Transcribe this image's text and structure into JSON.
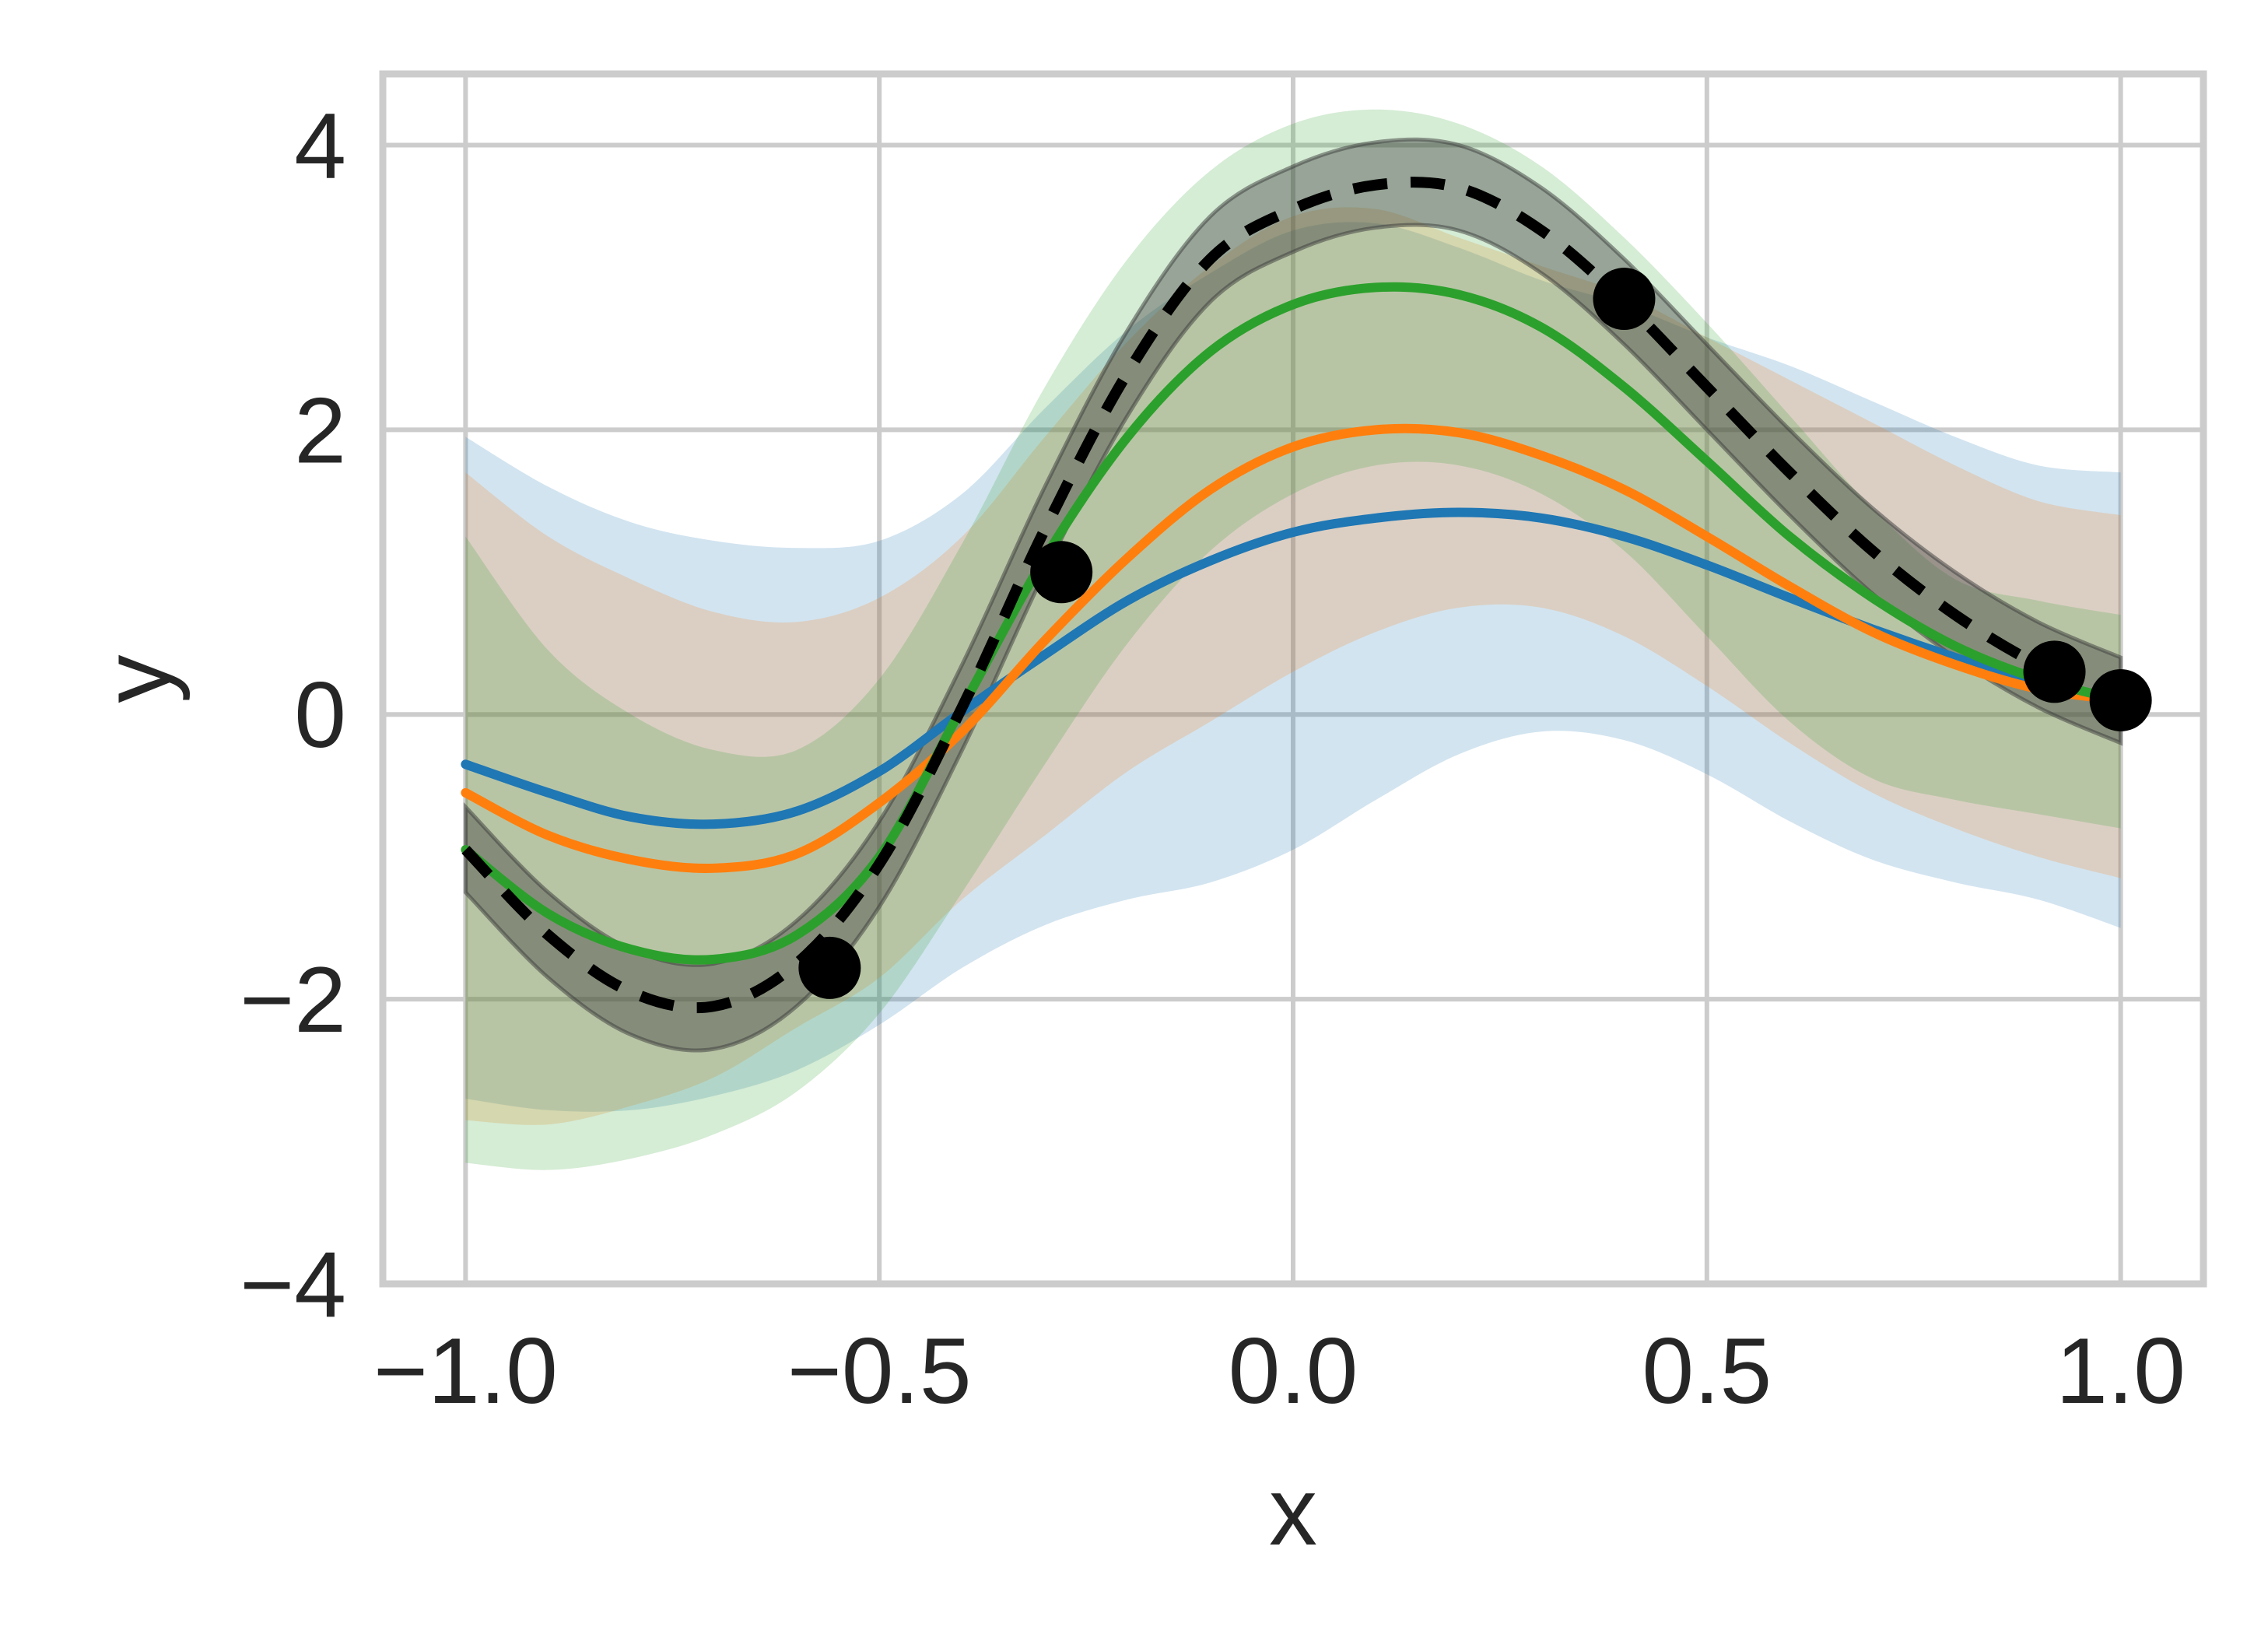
{
  "chart_data": {
    "type": "line",
    "title": "",
    "xlabel": "x",
    "ylabel": "y",
    "xlim": [
      -1.1,
      1.1
    ],
    "ylim": [
      -4,
      4.5
    ],
    "xticks": [
      -1.0,
      -0.5,
      0.0,
      0.5,
      1.0
    ],
    "xtick_labels": [
      "−1.0",
      "−0.5",
      "0.0",
      "0.5",
      "1.0"
    ],
    "yticks": [
      -4,
      -2,
      0,
      2,
      4
    ],
    "ytick_labels": [
      "−4",
      "−2",
      "0",
      "2",
      "4"
    ],
    "grid": true,
    "legend": "none",
    "x": [
      -1.0,
      -0.9,
      -0.8,
      -0.7,
      -0.6,
      -0.5,
      -0.4,
      -0.3,
      -0.2,
      -0.1,
      0.0,
      0.1,
      0.2,
      0.3,
      0.4,
      0.5,
      0.6,
      0.7,
      0.8,
      0.9,
      1.0
    ],
    "series": [
      {
        "style": "dashed",
        "color": "#000000",
        "values": [
          -0.95,
          -1.55,
          -1.95,
          -2.05,
          -1.75,
          -1.05,
          0.05,
          1.3,
          2.4,
          3.2,
          3.55,
          3.72,
          3.7,
          3.4,
          2.9,
          2.3,
          1.7,
          1.15,
          0.7,
          0.35,
          0.1
        ],
        "band_lower": [
          -1.25,
          -1.85,
          -2.25,
          -2.35,
          -2.05,
          -1.35,
          -0.25,
          1.0,
          2.1,
          2.9,
          3.25,
          3.42,
          3.4,
          3.1,
          2.6,
          2.0,
          1.4,
          0.85,
          0.4,
          0.05,
          -0.2
        ],
        "band_upper": [
          -0.65,
          -1.25,
          -1.65,
          -1.75,
          -1.45,
          -0.75,
          0.35,
          1.6,
          2.7,
          3.5,
          3.85,
          4.02,
          4.0,
          3.7,
          3.2,
          2.6,
          2.0,
          1.45,
          1.0,
          0.65,
          0.4
        ],
        "band_color": "#3a3a3a",
        "band_opacity": 0.4
      },
      {
        "color": "#1f77b4",
        "values": [
          -0.35,
          -0.55,
          -0.72,
          -0.77,
          -0.68,
          -0.4,
          0.02,
          0.42,
          0.8,
          1.08,
          1.28,
          1.38,
          1.42,
          1.38,
          1.25,
          1.05,
          0.82,
          0.6,
          0.4,
          0.22,
          0.08
        ],
        "band_lower": [
          -2.7,
          -2.78,
          -2.78,
          -2.68,
          -2.5,
          -2.18,
          -1.78,
          -1.48,
          -1.3,
          -1.18,
          -0.95,
          -0.6,
          -0.28,
          -0.12,
          -0.18,
          -0.42,
          -0.75,
          -1.02,
          -1.18,
          -1.3,
          -1.5
        ],
        "band_upper": [
          1.95,
          1.6,
          1.35,
          1.22,
          1.17,
          1.22,
          1.55,
          2.15,
          2.7,
          3.1,
          3.4,
          3.45,
          3.28,
          3.05,
          2.88,
          2.65,
          2.45,
          2.2,
          1.95,
          1.75,
          1.7
        ],
        "band_opacity": 0.2
      },
      {
        "color": "#ff7f0e",
        "values": [
          -0.55,
          -0.85,
          -1.02,
          -1.08,
          -0.98,
          -0.62,
          -0.12,
          0.52,
          1.1,
          1.58,
          1.88,
          2.0,
          1.98,
          1.82,
          1.58,
          1.25,
          0.9,
          0.58,
          0.35,
          0.18,
          0.1
        ],
        "band_lower": [
          -2.85,
          -2.88,
          -2.75,
          -2.55,
          -2.2,
          -1.85,
          -1.3,
          -0.85,
          -0.4,
          -0.05,
          0.3,
          0.58,
          0.75,
          0.75,
          0.55,
          0.2,
          -0.2,
          -0.55,
          -0.8,
          -1.0,
          -1.15
        ],
        "band_upper": [
          1.7,
          1.25,
          0.95,
          0.72,
          0.65,
          0.82,
          1.25,
          1.95,
          2.62,
          3.15,
          3.5,
          3.55,
          3.35,
          3.15,
          2.95,
          2.65,
          2.35,
          2.05,
          1.75,
          1.5,
          1.4
        ],
        "band_opacity": 0.2
      },
      {
        "color": "#2ca02c",
        "values": [
          -0.95,
          -1.4,
          -1.65,
          -1.72,
          -1.55,
          -1.0,
          0.05,
          1.1,
          1.95,
          2.55,
          2.88,
          3.0,
          2.95,
          2.72,
          2.3,
          1.78,
          1.25,
          0.82,
          0.48,
          0.25,
          0.1
        ],
        "band_lower": [
          -3.15,
          -3.2,
          -3.12,
          -2.95,
          -2.65,
          -2.1,
          -1.25,
          -0.35,
          0.5,
          1.15,
          1.55,
          1.75,
          1.75,
          1.55,
          1.15,
          0.55,
          -0.05,
          -0.45,
          -0.6,
          -0.7,
          -0.8
        ],
        "band_upper": [
          1.25,
          0.45,
          0.0,
          -0.25,
          -0.25,
          0.25,
          1.2,
          2.3,
          3.2,
          3.82,
          4.15,
          4.25,
          4.15,
          3.85,
          3.35,
          2.75,
          2.1,
          1.45,
          0.95,
          0.8,
          0.7
        ],
        "band_opacity": 0.2
      }
    ],
    "scatter_points": {
      "color": "#000000",
      "x": [
        -0.56,
        -0.28,
        0.4,
        0.92,
        1.0
      ],
      "y": [
        -1.78,
        1.0,
        2.92,
        0.3,
        0.1
      ]
    }
  }
}
